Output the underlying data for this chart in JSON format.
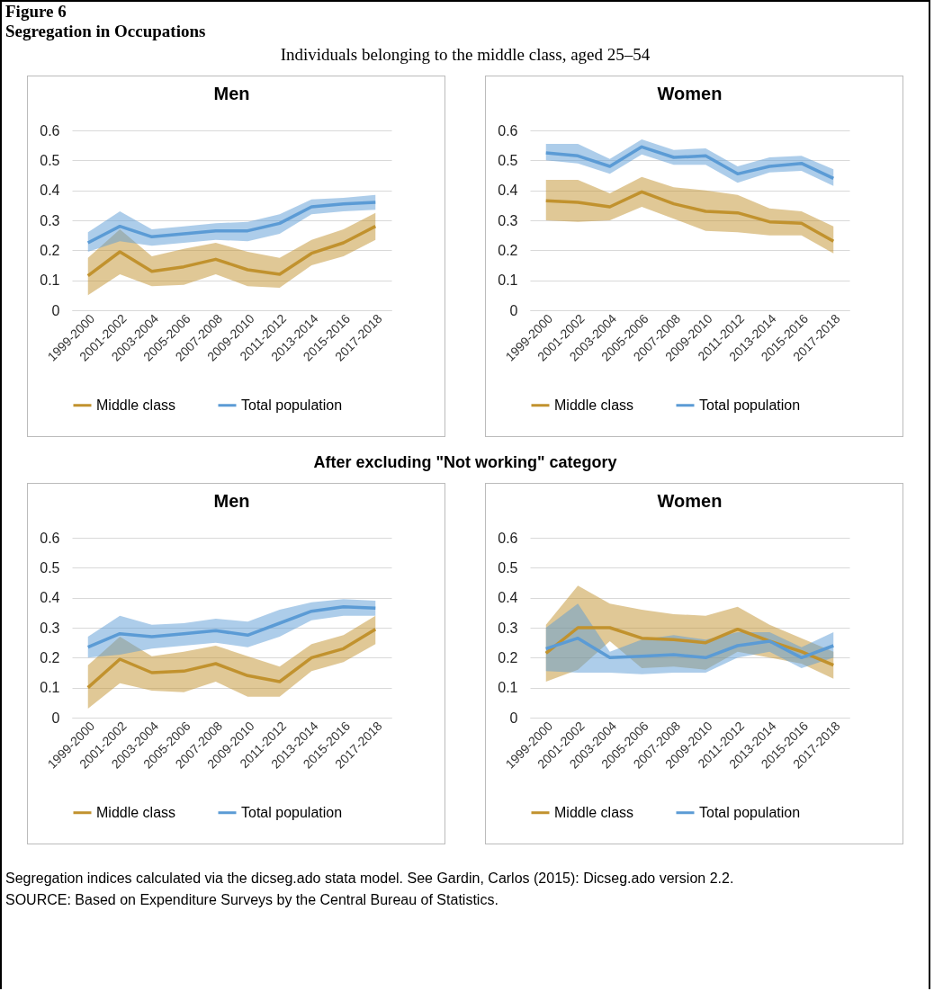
{
  "chart_data": [
    {
      "type": "line",
      "title": "Men",
      "annotations": [
        "Figure 6",
        "Segregation in Occupations",
        "Individuals belonging to the middle class, aged 25–54"
      ],
      "categories": [
        "1999-2000",
        "2001-2002",
        "2003-2004",
        "2005-2006",
        "2007-2008",
        "2009-2010",
        "2011-2012",
        "2013-2014",
        "2015-2016",
        "2017-2018"
      ],
      "ylim": [
        0,
        0.6
      ],
      "yticks": [
        0,
        0.1,
        0.2,
        0.3,
        0.4,
        0.5,
        0.6
      ],
      "grid": "y",
      "legend": "bottom",
      "series": [
        {
          "name": "Middle class",
          "color": "#c1922e",
          "values": [
            0.115,
            0.195,
            0.13,
            0.145,
            0.17,
            0.135,
            0.12,
            0.19,
            0.225,
            0.28
          ],
          "lower": [
            0.05,
            0.12,
            0.08,
            0.085,
            0.12,
            0.08,
            0.075,
            0.15,
            0.18,
            0.235
          ],
          "upper": [
            0.175,
            0.27,
            0.18,
            0.205,
            0.225,
            0.195,
            0.175,
            0.235,
            0.27,
            0.325
          ]
        },
        {
          "name": "Total population",
          "color": "#5b9bd5",
          "values": [
            0.225,
            0.28,
            0.245,
            0.255,
            0.265,
            0.265,
            0.29,
            0.345,
            0.355,
            0.36
          ],
          "lower": [
            0.195,
            0.23,
            0.215,
            0.225,
            0.235,
            0.23,
            0.255,
            0.32,
            0.33,
            0.335
          ],
          "upper": [
            0.26,
            0.33,
            0.27,
            0.28,
            0.29,
            0.295,
            0.32,
            0.37,
            0.375,
            0.385
          ]
        }
      ]
    },
    {
      "type": "line",
      "title": "Women",
      "categories": [
        "1999-2000",
        "2001-2002",
        "2003-2004",
        "2005-2006",
        "2007-2008",
        "2009-2010",
        "2011-2012",
        "2013-2014",
        "2015-2016",
        "2017-2018"
      ],
      "ylim": [
        0,
        0.6
      ],
      "yticks": [
        0,
        0.1,
        0.2,
        0.3,
        0.4,
        0.5,
        0.6
      ],
      "grid": "y",
      "legend": "bottom",
      "series": [
        {
          "name": "Middle class",
          "color": "#c1922e",
          "values": [
            0.365,
            0.36,
            0.345,
            0.395,
            0.355,
            0.33,
            0.325,
            0.295,
            0.29,
            0.23
          ],
          "lower": [
            0.3,
            0.295,
            0.3,
            0.345,
            0.305,
            0.265,
            0.26,
            0.25,
            0.25,
            0.19
          ],
          "upper": [
            0.435,
            0.435,
            0.39,
            0.445,
            0.41,
            0.4,
            0.385,
            0.34,
            0.33,
            0.28
          ]
        },
        {
          "name": "Total population",
          "color": "#5b9bd5",
          "values": [
            0.525,
            0.515,
            0.48,
            0.545,
            0.51,
            0.515,
            0.455,
            0.48,
            0.49,
            0.44
          ],
          "lower": [
            0.5,
            0.49,
            0.455,
            0.52,
            0.485,
            0.485,
            0.425,
            0.46,
            0.465,
            0.415
          ],
          "upper": [
            0.555,
            0.555,
            0.505,
            0.57,
            0.535,
            0.54,
            0.48,
            0.51,
            0.515,
            0.47
          ]
        }
      ]
    },
    {
      "type": "line",
      "title": "Men",
      "annotations": [
        "After excluding \"Not working\" category"
      ],
      "categories": [
        "1999-2000",
        "2001-2002",
        "2003-2004",
        "2005-2006",
        "2007-2008",
        "2009-2010",
        "2011-2012",
        "2013-2014",
        "2015-2016",
        "2017-2018"
      ],
      "ylim": [
        0,
        0.6
      ],
      "yticks": [
        0,
        0.1,
        0.2,
        0.3,
        0.4,
        0.5,
        0.6
      ],
      "grid": "y",
      "legend": "bottom",
      "series": [
        {
          "name": "Middle class",
          "color": "#c1922e",
          "values": [
            0.1,
            0.195,
            0.15,
            0.155,
            0.18,
            0.14,
            0.12,
            0.2,
            0.23,
            0.295
          ],
          "lower": [
            0.03,
            0.115,
            0.09,
            0.085,
            0.12,
            0.07,
            0.07,
            0.155,
            0.185,
            0.245
          ],
          "upper": [
            0.175,
            0.27,
            0.205,
            0.22,
            0.24,
            0.205,
            0.17,
            0.245,
            0.275,
            0.34
          ]
        },
        {
          "name": "Total population",
          "color": "#5b9bd5",
          "values": [
            0.235,
            0.28,
            0.27,
            0.28,
            0.29,
            0.275,
            0.315,
            0.355,
            0.37,
            0.365
          ],
          "lower": [
            0.2,
            0.21,
            0.23,
            0.24,
            0.25,
            0.235,
            0.27,
            0.325,
            0.34,
            0.34
          ],
          "upper": [
            0.27,
            0.34,
            0.31,
            0.315,
            0.33,
            0.32,
            0.36,
            0.385,
            0.395,
            0.39
          ]
        }
      ]
    },
    {
      "type": "line",
      "title": "Women",
      "annotations": [
        "Segregation indices calculated via the dicseg.ado stata model. See Gardin, Carlos (2015): Dicseg.ado version 2.2.",
        "SOURCE: Based on Expenditure Surveys by the Central Bureau of Statistics."
      ],
      "categories": [
        "1999-2000",
        "2001-2002",
        "2003-2004",
        "2005-2006",
        "2007-2008",
        "2009-2010",
        "2011-2012",
        "2013-2014",
        "2015-2016",
        "2017-2018"
      ],
      "ylim": [
        0,
        0.6
      ],
      "yticks": [
        0,
        0.1,
        0.2,
        0.3,
        0.4,
        0.5,
        0.6
      ],
      "grid": "y",
      "legend": "bottom",
      "series": [
        {
          "name": "Middle class",
          "color": "#c1922e",
          "values": [
            0.215,
            0.3,
            0.3,
            0.265,
            0.26,
            0.25,
            0.295,
            0.255,
            0.22,
            0.175
          ],
          "lower": [
            0.12,
            0.16,
            0.255,
            0.165,
            0.17,
            0.16,
            0.22,
            0.2,
            0.18,
            0.13
          ],
          "upper": [
            0.31,
            0.44,
            0.38,
            0.36,
            0.345,
            0.34,
            0.37,
            0.31,
            0.265,
            0.22
          ]
        },
        {
          "name": "Total population",
          "color": "#5b9bd5",
          "values": [
            0.23,
            0.265,
            0.2,
            0.205,
            0.21,
            0.2,
            0.24,
            0.255,
            0.2,
            0.24
          ],
          "lower": [
            0.155,
            0.15,
            0.15,
            0.145,
            0.15,
            0.15,
            0.2,
            0.22,
            0.165,
            0.2
          ],
          "upper": [
            0.3,
            0.38,
            0.22,
            0.26,
            0.275,
            0.26,
            0.285,
            0.285,
            0.235,
            0.285
          ]
        }
      ]
    }
  ]
}
